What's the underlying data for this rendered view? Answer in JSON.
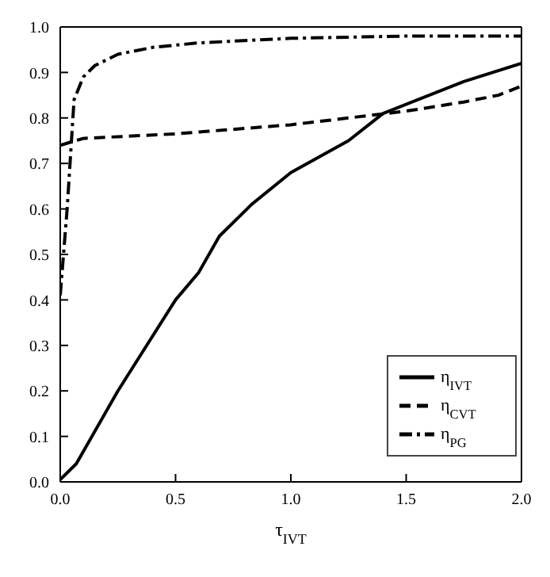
{
  "chart_data": {
    "type": "line",
    "xlabel": "τ$_{IVT}$",
    "xlim": [
      0,
      2
    ],
    "xticks": [
      {
        "value": 0,
        "label": "0.0"
      },
      {
        "value": 0.5,
        "label": "0.5"
      },
      {
        "value": 1,
        "label": "1.0"
      },
      {
        "value": 1.5,
        "label": "1.5"
      },
      {
        "value": 2,
        "label": "2.0"
      }
    ],
    "ylim": [
      0,
      1
    ],
    "yticks": [
      {
        "value": 0,
        "label": "0.0"
      },
      {
        "value": 0.1,
        "label": "0.1"
      },
      {
        "value": 0.2,
        "label": "0.2"
      },
      {
        "value": 0.3,
        "label": "0.3"
      },
      {
        "value": 0.4,
        "label": "0.4"
      },
      {
        "value": 0.5,
        "label": "0.5"
      },
      {
        "value": 0.6,
        "label": "0.6"
      },
      {
        "value": 0.7,
        "label": "0.7"
      },
      {
        "value": 0.8,
        "label": "0.8"
      },
      {
        "value": 0.9,
        "label": "0.9"
      },
      {
        "value": 1,
        "label": "1.0"
      }
    ],
    "legend": "bottom right",
    "marker": "none",
    "series": [
      {
        "name": "η$_{IVT}$",
        "color": "#000000",
        "line_style": "solid",
        "x": [
          0,
          0.07,
          0.25,
          0.375,
          0.5,
          0.6,
          0.69,
          0.83,
          1.0,
          1.25,
          1.4,
          1.75,
          2.0
        ],
        "values": [
          0.005,
          0.04,
          0.2,
          0.3,
          0.4,
          0.46,
          0.54,
          0.61,
          0.68,
          0.75,
          0.81,
          0.88,
          0.92
        ]
      },
      {
        "name": "η$_{CVT}$",
        "color": "#000000",
        "line_style": "dashed",
        "x": [
          0,
          0.1,
          0.5,
          1.0,
          1.25,
          1.5,
          1.75,
          1.9,
          2.0
        ],
        "values": [
          0.74,
          0.755,
          0.765,
          0.785,
          0.8,
          0.815,
          0.835,
          0.85,
          0.87
        ]
      },
      {
        "name": "η$_{PG}$",
        "color": "#000000",
        "line_style": "dashdot",
        "x": [
          0,
          0.03,
          0.06,
          0.1,
          0.15,
          0.25,
          0.4,
          0.6,
          1.0,
          1.5,
          2.0
        ],
        "values": [
          0.41,
          0.6,
          0.84,
          0.89,
          0.915,
          0.94,
          0.955,
          0.965,
          0.975,
          0.98,
          0.98
        ]
      }
    ]
  }
}
